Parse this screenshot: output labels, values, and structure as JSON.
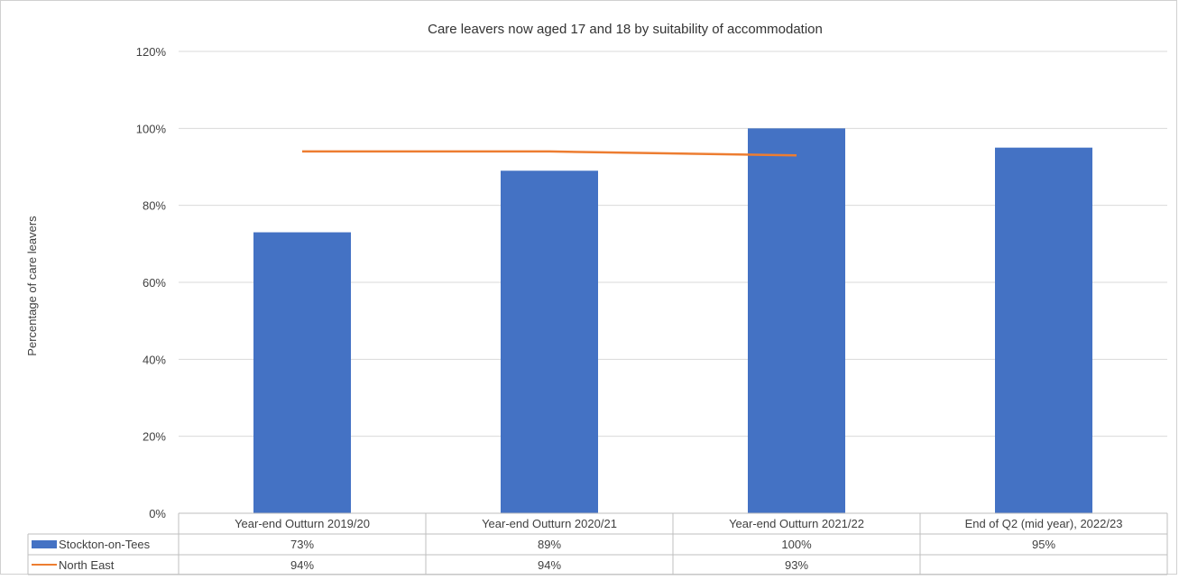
{
  "chart_data": {
    "type": "bar",
    "title": "Care leavers now aged 17 and 18 by suitability of accommodation",
    "ylabel": "Percentage of care leavers",
    "xlabel": "",
    "ylim": [
      0,
      120
    ],
    "yticks": [
      "0%",
      "20%",
      "40%",
      "60%",
      "80%",
      "100%",
      "120%"
    ],
    "ytick_values": [
      0,
      20,
      40,
      60,
      80,
      100,
      120
    ],
    "grid": true,
    "legend": "data-table",
    "categories": [
      "Year-end Outturn 2019/20",
      "Year-end Outturn 2020/21",
      "Year-end Outturn 2021/22",
      "End of Q2 (mid year), 2022/23"
    ],
    "series": [
      {
        "name": "Stockton-on-Tees",
        "kind": "bar",
        "color": "#4472c4",
        "values": [
          73,
          89,
          100,
          95
        ],
        "labels": [
          "73%",
          "89%",
          "100%",
          "95%"
        ]
      },
      {
        "name": "North East",
        "kind": "line",
        "color": "#ed7d31",
        "values": [
          94,
          94,
          93,
          null
        ],
        "labels": [
          "94%",
          "94%",
          "93%",
          ""
        ]
      }
    ]
  }
}
